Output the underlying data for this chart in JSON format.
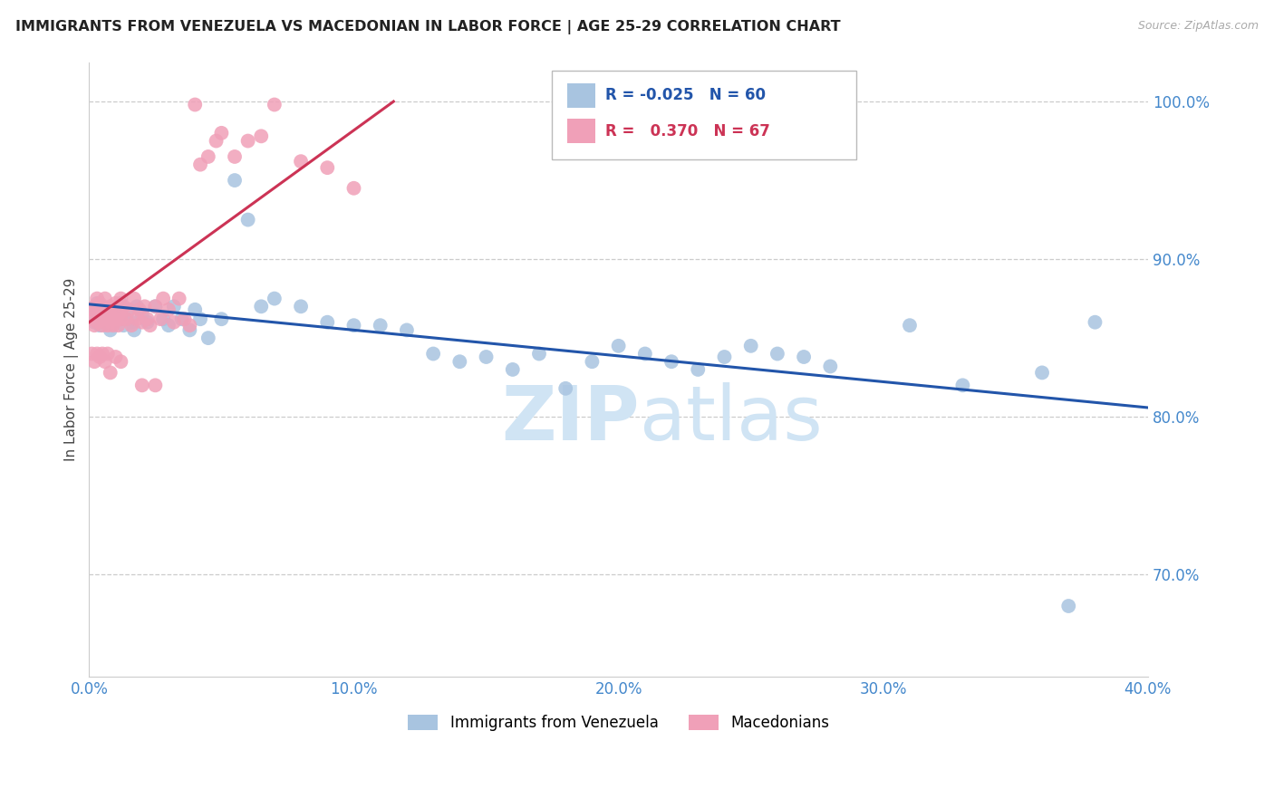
{
  "title": "IMMIGRANTS FROM VENEZUELA VS MACEDONIAN IN LABOR FORCE | AGE 25-29 CORRELATION CHART",
  "source_text": "Source: ZipAtlas.com",
  "ylabel": "In Labor Force | Age 25-29",
  "y_ticks": [
    0.7,
    0.8,
    0.9,
    1.0
  ],
  "y_tick_labels": [
    "70.0%",
    "80.0%",
    "90.0%",
    "100.0%"
  ],
  "x_ticks": [
    0.0,
    0.1,
    0.2,
    0.3,
    0.4
  ],
  "x_tick_labels": [
    "0.0%",
    "10.0%",
    "20.0%",
    "30.0%",
    "40.0%"
  ],
  "xlim": [
    0.0,
    0.4
  ],
  "ylim": [
    0.635,
    1.025
  ],
  "legend_blue_R": "-0.025",
  "legend_blue_N": "60",
  "legend_pink_R": "0.370",
  "legend_pink_N": "67",
  "legend_blue_label": "Immigrants from Venezuela",
  "legend_pink_label": "Macedonians",
  "blue_color": "#a8c4e0",
  "pink_color": "#f0a0b8",
  "blue_line_color": "#2255aa",
  "pink_line_color": "#cc3355",
  "title_color": "#222222",
  "axis_label_color": "#4488cc",
  "watermark_color": "#d0e4f4",
  "blue_x": [
    0.001,
    0.002,
    0.003,
    0.004,
    0.005,
    0.006,
    0.007,
    0.008,
    0.009,
    0.01,
    0.011,
    0.012,
    0.013,
    0.014,
    0.015,
    0.016,
    0.017,
    0.018,
    0.02,
    0.022,
    0.025,
    0.028,
    0.03,
    0.032,
    0.035,
    0.038,
    0.04,
    0.042,
    0.045,
    0.05,
    0.055,
    0.06,
    0.065,
    0.07,
    0.08,
    0.09,
    0.1,
    0.11,
    0.12,
    0.13,
    0.14,
    0.15,
    0.16,
    0.17,
    0.18,
    0.19,
    0.2,
    0.21,
    0.22,
    0.23,
    0.24,
    0.25,
    0.26,
    0.27,
    0.28,
    0.31,
    0.33,
    0.36,
    0.37,
    0.38
  ],
  "blue_y": [
    0.868,
    0.86,
    0.872,
    0.858,
    0.87,
    0.862,
    0.868,
    0.855,
    0.865,
    0.862,
    0.868,
    0.872,
    0.858,
    0.862,
    0.868,
    0.86,
    0.855,
    0.87,
    0.865,
    0.86,
    0.87,
    0.862,
    0.858,
    0.87,
    0.862,
    0.855,
    0.868,
    0.862,
    0.85,
    0.862,
    0.95,
    0.925,
    0.87,
    0.875,
    0.87,
    0.86,
    0.858,
    0.858,
    0.855,
    0.84,
    0.835,
    0.838,
    0.83,
    0.84,
    0.818,
    0.835,
    0.845,
    0.84,
    0.835,
    0.83,
    0.838,
    0.845,
    0.84,
    0.838,
    0.832,
    0.858,
    0.82,
    0.828,
    0.68,
    0.86
  ],
  "pink_x": [
    0.001,
    0.001,
    0.002,
    0.002,
    0.003,
    0.003,
    0.004,
    0.004,
    0.005,
    0.005,
    0.006,
    0.006,
    0.007,
    0.007,
    0.008,
    0.008,
    0.009,
    0.009,
    0.01,
    0.01,
    0.011,
    0.011,
    0.012,
    0.012,
    0.013,
    0.014,
    0.015,
    0.016,
    0.017,
    0.018,
    0.019,
    0.02,
    0.021,
    0.022,
    0.023,
    0.025,
    0.027,
    0.028,
    0.03,
    0.032,
    0.034,
    0.036,
    0.038,
    0.04,
    0.042,
    0.045,
    0.048,
    0.05,
    0.055,
    0.06,
    0.065,
    0.07,
    0.08,
    0.09,
    0.1,
    0.001,
    0.002,
    0.003,
    0.004,
    0.005,
    0.006,
    0.007,
    0.008,
    0.01,
    0.012,
    0.02,
    0.025
  ],
  "pink_y": [
    0.868,
    0.862,
    0.87,
    0.858,
    0.875,
    0.86,
    0.872,
    0.862,
    0.868,
    0.858,
    0.875,
    0.862,
    0.868,
    0.858,
    0.87,
    0.862,
    0.865,
    0.858,
    0.872,
    0.862,
    0.865,
    0.858,
    0.875,
    0.862,
    0.87,
    0.862,
    0.868,
    0.858,
    0.875,
    0.862,
    0.868,
    0.86,
    0.87,
    0.862,
    0.858,
    0.87,
    0.862,
    0.875,
    0.868,
    0.86,
    0.875,
    0.862,
    0.858,
    0.998,
    0.96,
    0.965,
    0.975,
    0.98,
    0.965,
    0.975,
    0.978,
    0.998,
    0.962,
    0.958,
    0.945,
    0.84,
    0.835,
    0.84,
    0.838,
    0.84,
    0.835,
    0.84,
    0.828,
    0.838,
    0.835,
    0.82,
    0.82
  ],
  "pink_line_xmin": 0.0,
  "pink_line_xmax": 0.115,
  "blue_line_xmin": 0.0,
  "blue_line_xmax": 0.4
}
